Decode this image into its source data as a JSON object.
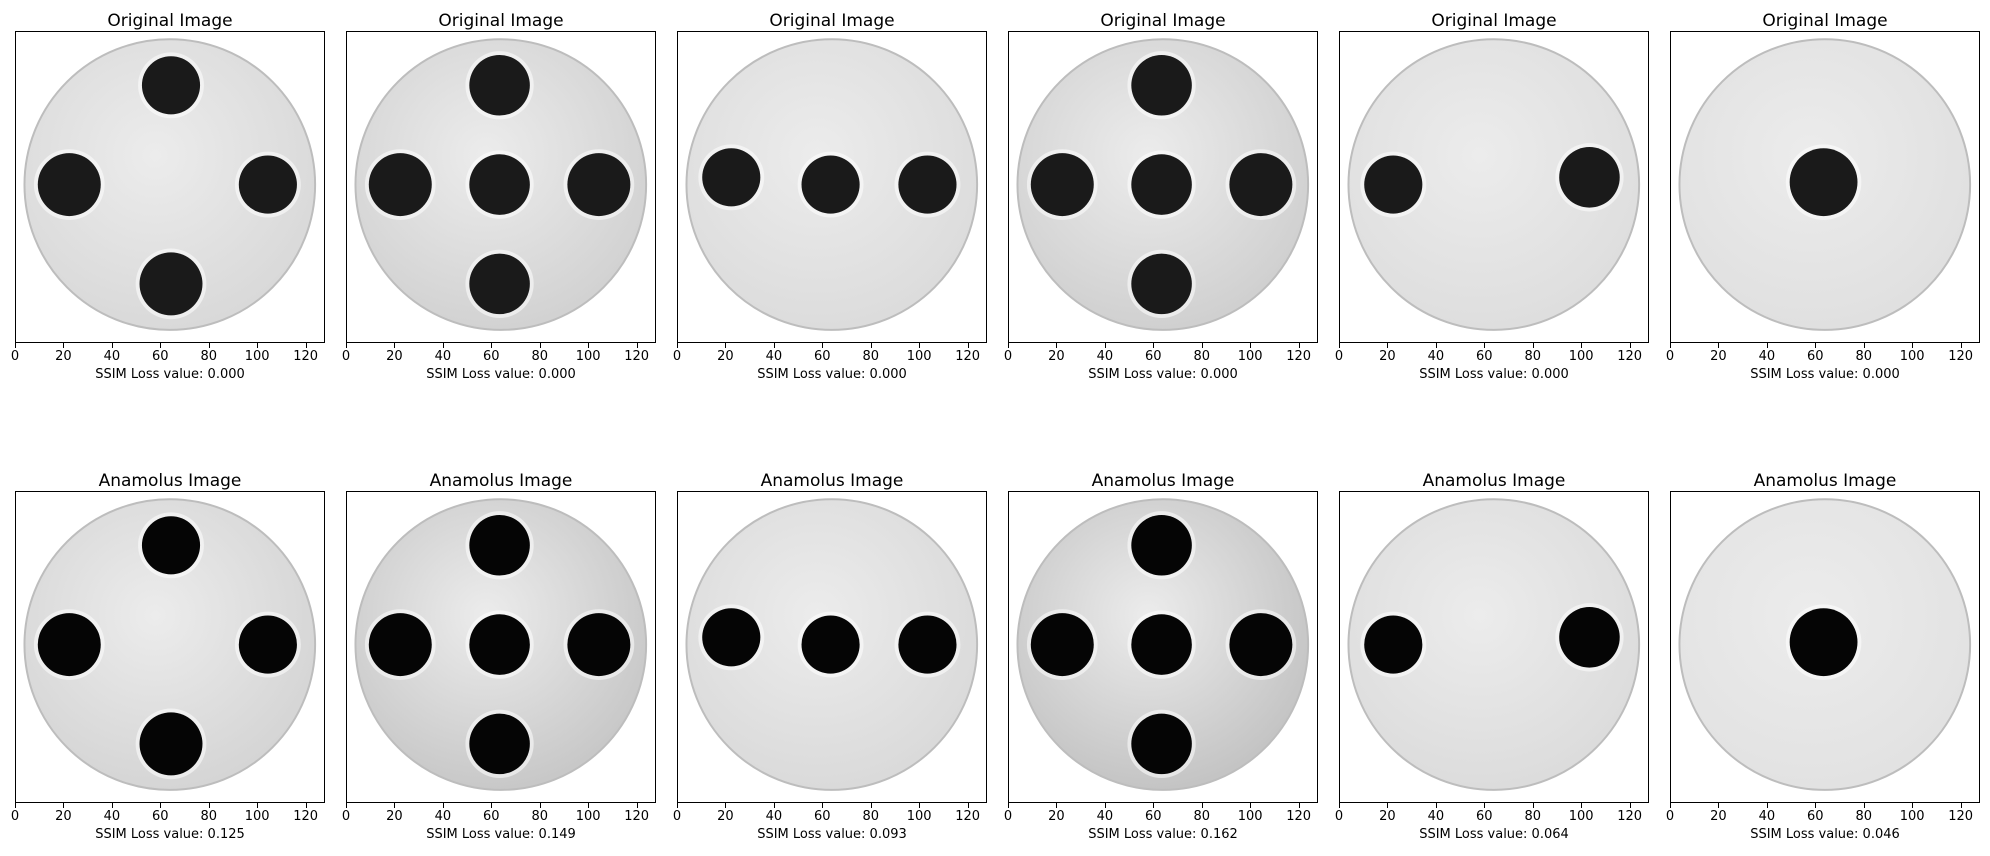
{
  "rows": [
    {
      "panels": [
        {
          "title": "Original Image",
          "caption": "SSIM Loss value: 0.000",
          "pattern": "plus4",
          "spot_color": "#1a1a1a",
          "bg_color": "#d9d9d9"
        },
        {
          "title": "Original Image",
          "caption": "SSIM Loss value: 0.000",
          "pattern": "cross5",
          "spot_color": "#1a1a1a",
          "bg_color": "#d2d2d2"
        },
        {
          "title": "Original Image",
          "caption": "SSIM Loss value: 0.000",
          "pattern": "row3",
          "spot_color": "#1a1a1a",
          "bg_color": "#dcdcdc"
        },
        {
          "title": "Original Image",
          "caption": "SSIM Loss value: 0.000",
          "pattern": "cross5",
          "spot_color": "#1a1a1a",
          "bg_color": "#d0d0d0"
        },
        {
          "title": "Original Image",
          "caption": "SSIM Loss value: 0.000",
          "pattern": "pair2",
          "spot_color": "#1a1a1a",
          "bg_color": "#dedede"
        },
        {
          "title": "Original Image",
          "caption": "SSIM Loss value: 0.000",
          "pattern": "single1",
          "spot_color": "#1a1a1a",
          "bg_color": "#e0e0e0"
        }
      ]
    },
    {
      "panels": [
        {
          "title": "Anamolus Image",
          "caption": "SSIM Loss value: 0.125",
          "pattern": "plus4",
          "spot_color": "#050505",
          "bg_color": "#d5d5d5"
        },
        {
          "title": "Anamolus Image",
          "caption": "SSIM Loss value: 0.149",
          "pattern": "cross5",
          "spot_color": "#050505",
          "bg_color": "#c8c8c8"
        },
        {
          "title": "Anamolus Image",
          "caption": "SSIM Loss value: 0.093",
          "pattern": "row3",
          "spot_color": "#050505",
          "bg_color": "#dadada"
        },
        {
          "title": "Anamolus Image",
          "caption": "SSIM Loss value: 0.162",
          "pattern": "cross5",
          "spot_color": "#050505",
          "bg_color": "#c4c4c4"
        },
        {
          "title": "Anamolus Image",
          "caption": "SSIM Loss value: 0.064",
          "pattern": "pair2",
          "spot_color": "#050505",
          "bg_color": "#dcdcdc"
        },
        {
          "title": "Anamolus Image",
          "caption": "SSIM Loss value: 0.046",
          "pattern": "single1",
          "spot_color": "#050505",
          "bg_color": "#e2e2e2"
        }
      ]
    }
  ],
  "x_ticks": [
    "0",
    "20",
    "40",
    "60",
    "80",
    "100",
    "120"
  ],
  "x_tick_values": [
    0,
    20,
    40,
    60,
    80,
    100,
    120
  ],
  "x_range": [
    0,
    128
  ]
}
